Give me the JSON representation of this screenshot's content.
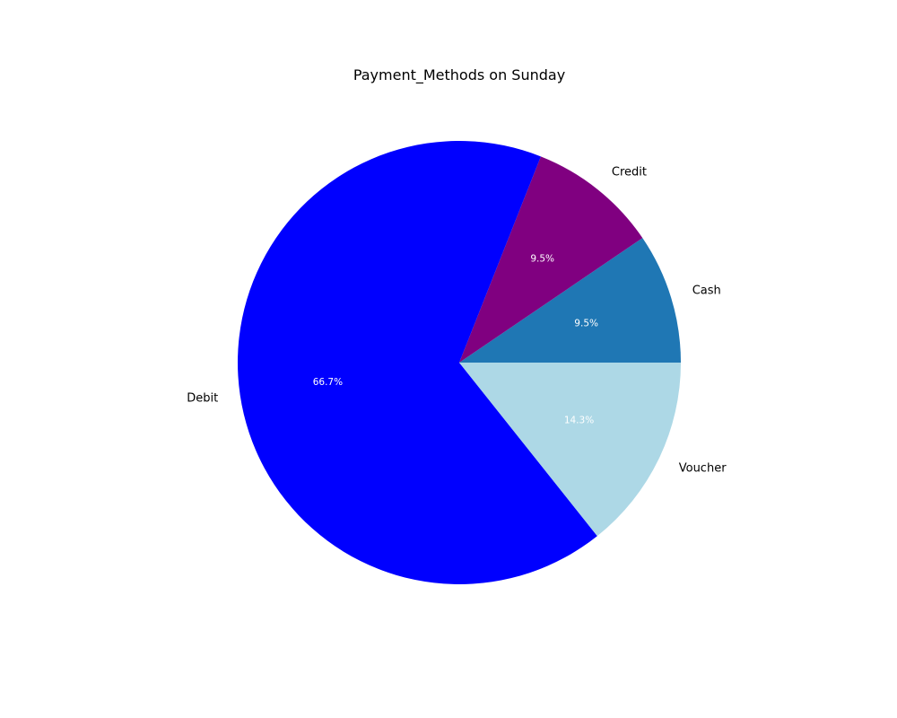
{
  "chart_data": {
    "type": "pie",
    "title": "Payment_Methods on Sunday",
    "slices": [
      {
        "label": "Cash",
        "value": 9.5,
        "percent_label": "9.5%",
        "color": "#1f77b4"
      },
      {
        "label": "Credit",
        "value": 9.5,
        "percent_label": "9.5%",
        "color": "#800080"
      },
      {
        "label": "Debit",
        "value": 66.7,
        "percent_label": "66.7%",
        "color": "#0000ff"
      },
      {
        "label": "Voucher",
        "value": 14.3,
        "percent_label": "14.3%",
        "color": "#add8e6"
      }
    ],
    "start_angle_deg": 0,
    "direction": "counterclockwise",
    "legend": "none"
  }
}
